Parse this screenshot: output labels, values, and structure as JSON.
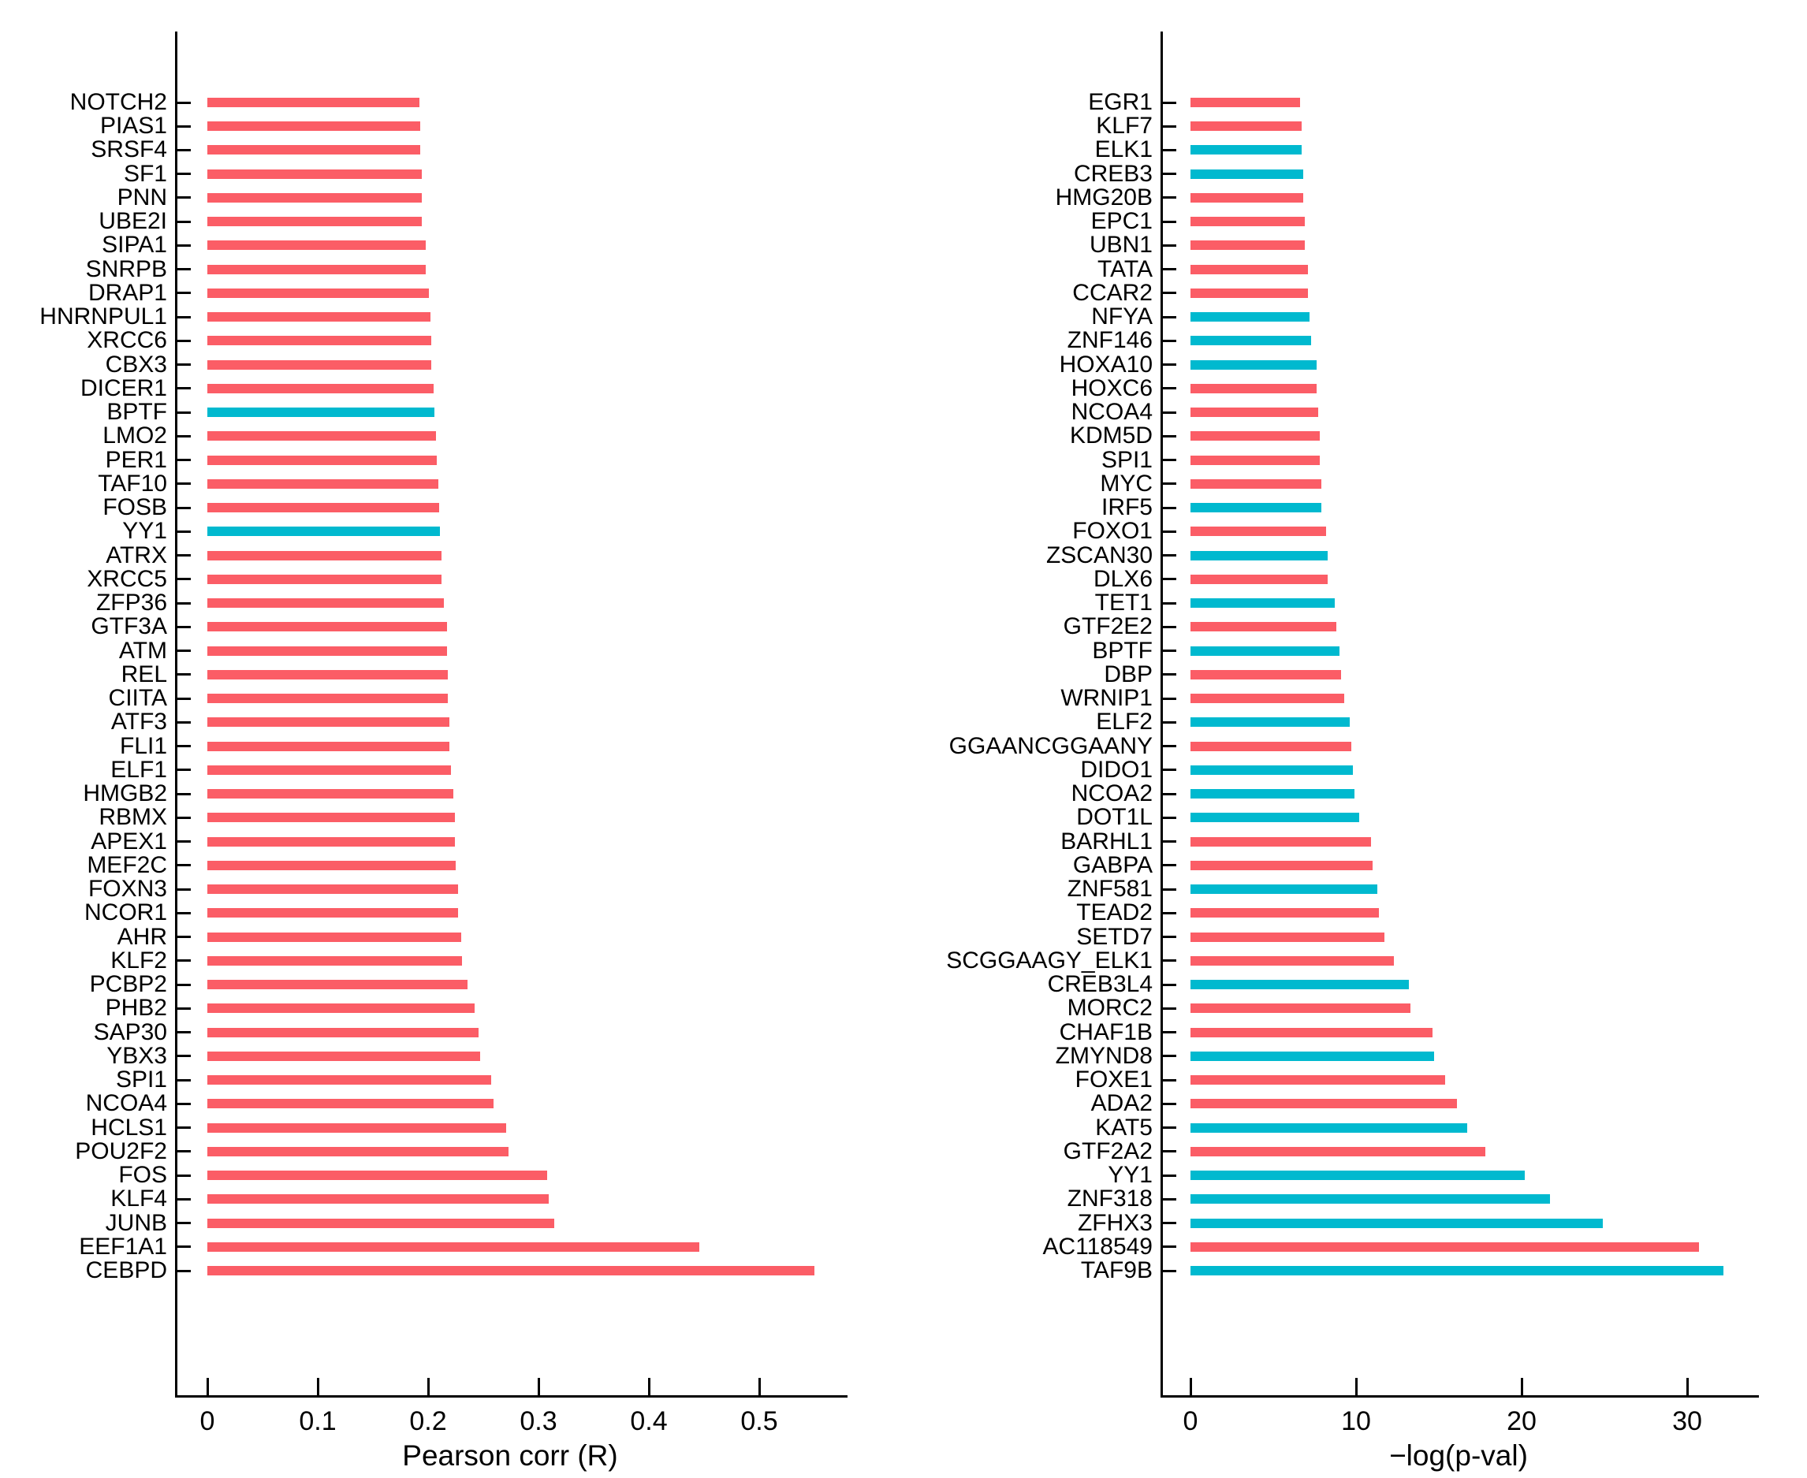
{
  "figure": {
    "background": "#ffffff",
    "title": ""
  },
  "palette": {
    "red": "#FB5D66",
    "cyan": "#00B9CF",
    "axis": "#000000",
    "text": "#000000"
  },
  "chart_data": [
    {
      "type": "bar",
      "orientation": "horizontal",
      "title": "",
      "xlabel": "Pearson corr (R)",
      "ylabel": "",
      "grid": false,
      "legend": null,
      "xlim": [
        0,
        0.578
      ],
      "xticks": [
        0,
        0.1,
        0.2,
        0.3,
        0.4,
        0.5
      ],
      "xtick_labels": [
        "0",
        "0.1",
        "0.2",
        "0.3",
        "0.4",
        "0.5"
      ],
      "categories": [
        "NOTCH2",
        "PIAS1",
        "SRSF4",
        "SF1",
        "PNN",
        "UBE2I",
        "SIPA1",
        "SNRPB",
        "DRAP1",
        "HNRNPUL1",
        "XRCC6",
        "CBX3",
        "DICER1",
        "BPTF",
        "LMO2",
        "PER1",
        "TAF10",
        "FOSB",
        "YY1",
        "ATRX",
        "XRCC5",
        "ZFP36",
        "GTF3A",
        "ATM",
        "REL",
        "CIITA",
        "ATF3",
        "FLI1",
        "ELF1",
        "HMGB2",
        "RBMX",
        "APEX1",
        "MEF2C",
        "FOXN3",
        "NCOR1",
        "AHR",
        "KLF2",
        "PCBP2",
        "PHB2",
        "SAP30",
        "YBX3",
        "SPI1",
        "NCOA4",
        "HCLS1",
        "POU2F2",
        "FOS",
        "KLF4",
        "JUNB",
        "EEF1A1",
        "CEBPD"
      ],
      "values": [
        0.192,
        0.193,
        0.193,
        0.194,
        0.194,
        0.194,
        0.198,
        0.198,
        0.201,
        0.202,
        0.203,
        0.203,
        0.205,
        0.206,
        0.207,
        0.208,
        0.209,
        0.21,
        0.211,
        0.212,
        0.212,
        0.214,
        0.217,
        0.217,
        0.218,
        0.218,
        0.219,
        0.219,
        0.221,
        0.223,
        0.224,
        0.224,
        0.225,
        0.227,
        0.227,
        0.23,
        0.231,
        0.236,
        0.242,
        0.246,
        0.247,
        0.257,
        0.259,
        0.271,
        0.273,
        0.308,
        0.309,
        0.314,
        0.446,
        0.55
      ],
      "bar_colors": [
        "red",
        "red",
        "red",
        "red",
        "red",
        "red",
        "red",
        "red",
        "red",
        "red",
        "red",
        "red",
        "red",
        "cyan",
        "red",
        "red",
        "red",
        "red",
        "cyan",
        "red",
        "red",
        "red",
        "red",
        "red",
        "red",
        "red",
        "red",
        "red",
        "red",
        "red",
        "red",
        "red",
        "red",
        "red",
        "red",
        "red",
        "red",
        "red",
        "red",
        "red",
        "red",
        "red",
        "red",
        "red",
        "red",
        "red",
        "red",
        "red",
        "red",
        "red"
      ]
    },
    {
      "type": "bar",
      "orientation": "horizontal",
      "title": "",
      "xlabel": "−log(p-val)",
      "ylabel": "",
      "grid": false,
      "legend": null,
      "xlim": [
        0,
        34.2
      ],
      "xticks": [
        0,
        10,
        20,
        30
      ],
      "xtick_labels": [
        "0",
        "10",
        "20",
        "30"
      ],
      "categories": [
        "EGR1",
        "KLF7",
        "ELK1",
        "CREB3",
        "HMG20B",
        "EPC1",
        "UBN1",
        "TATA",
        "CCAR2",
        "NFYA",
        "ZNF146",
        "HOXA10",
        "HOXC6",
        "NCOA4",
        "KDM5D",
        "SPI1",
        "MYC",
        "IRF5",
        "FOXO1",
        "ZSCAN30",
        "DLX6",
        "TET1",
        "GTF2E2",
        "BPTF",
        "DBP",
        "WRNIP1",
        "ELF2",
        "GGAANCGGAANY",
        "DIDO1",
        "NCOA2",
        "DOT1L",
        "BARHL1",
        "GABPA",
        "ZNF581",
        "TEAD2",
        "SETD7",
        "SCGGAAGY_ELK1",
        "CREB3L4",
        "MORC2",
        "CHAF1B",
        "ZMYND8",
        "FOXE1",
        "ADA2",
        "KAT5",
        "GTF2A2",
        "YY1",
        "ZNF318",
        "ZFHX3",
        "AC118549",
        "TAF9B"
      ],
      "values": [
        6.6,
        6.7,
        6.7,
        6.8,
        6.8,
        6.9,
        6.9,
        7.1,
        7.1,
        7.2,
        7.3,
        7.6,
        7.6,
        7.7,
        7.8,
        7.8,
        7.9,
        7.9,
        8.2,
        8.3,
        8.3,
        8.7,
        8.8,
        9.0,
        9.1,
        9.3,
        9.6,
        9.7,
        9.8,
        9.9,
        10.2,
        10.9,
        11.0,
        11.3,
        11.4,
        11.7,
        12.3,
        13.2,
        13.3,
        14.6,
        14.7,
        15.4,
        16.1,
        16.7,
        17.8,
        20.2,
        21.7,
        24.9,
        30.7,
        32.2
      ],
      "bar_colors": [
        "red",
        "red",
        "cyan",
        "cyan",
        "red",
        "red",
        "red",
        "red",
        "red",
        "cyan",
        "cyan",
        "cyan",
        "red",
        "red",
        "red",
        "red",
        "red",
        "cyan",
        "red",
        "cyan",
        "red",
        "cyan",
        "red",
        "cyan",
        "red",
        "red",
        "cyan",
        "red",
        "cyan",
        "cyan",
        "cyan",
        "red",
        "red",
        "cyan",
        "red",
        "red",
        "red",
        "cyan",
        "red",
        "red",
        "cyan",
        "red",
        "red",
        "cyan",
        "red",
        "cyan",
        "cyan",
        "cyan",
        "red",
        "cyan"
      ]
    }
  ]
}
